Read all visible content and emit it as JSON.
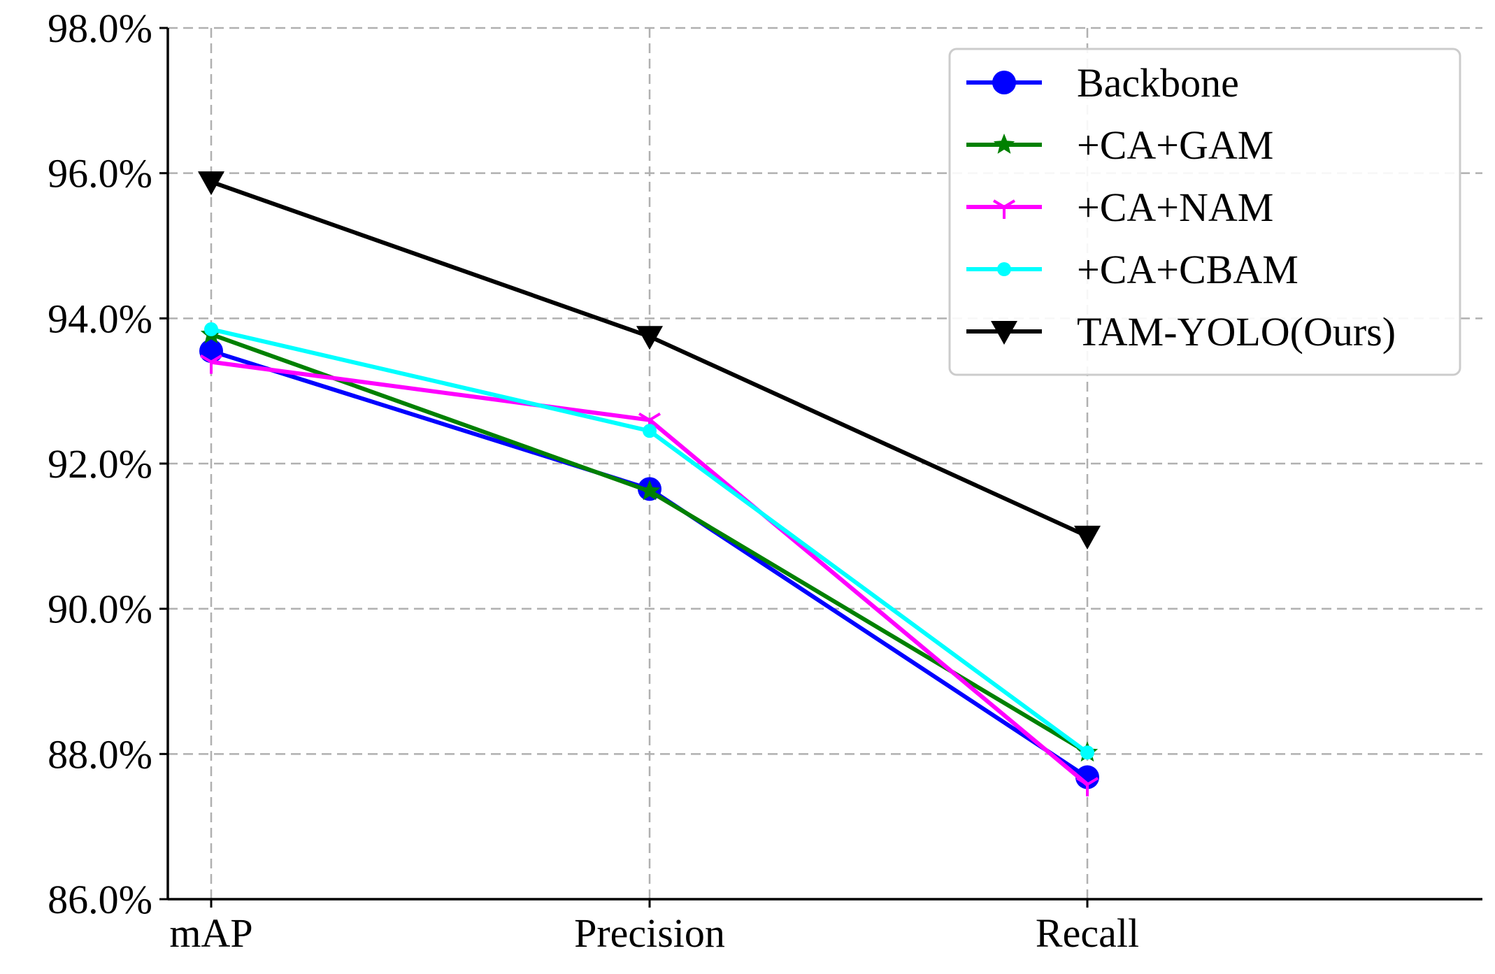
{
  "chart_data": {
    "type": "line",
    "title": "",
    "xlabel": "",
    "ylabel": "",
    "categories": [
      "mAP",
      "Precision",
      "Recall"
    ],
    "ylim": [
      86.0,
      98.0
    ],
    "yticks": [
      86.0,
      88.0,
      90.0,
      92.0,
      94.0,
      96.0,
      98.0
    ],
    "ytick_labels": [
      "86.0%",
      "88.0%",
      "90.0%",
      "92.0%",
      "94.0%",
      "96.0%",
      "98.0%"
    ],
    "grid": true,
    "legend_position": "top-right",
    "series": [
      {
        "name": "Backbone",
        "color": "#0000ff",
        "marker": "circle",
        "values": [
          93.55,
          91.65,
          87.68
        ]
      },
      {
        "name": "+CA+GAM",
        "color": "#008000",
        "marker": "star",
        "values": [
          93.78,
          91.62,
          88.02
        ]
      },
      {
        "name": "+CA+NAM",
        "color": "#ff00ff",
        "marker": "tri_down",
        "values": [
          93.4,
          92.6,
          87.58
        ]
      },
      {
        "name": "+CA+CBAM",
        "color": "#00ffff",
        "marker": "point",
        "values": [
          93.85,
          92.45,
          88.02
        ]
      },
      {
        "name": "TAM-YOLO(Ours)",
        "color": "#000000",
        "marker": "triangle_down",
        "values": [
          95.88,
          93.75,
          91.0
        ]
      }
    ]
  }
}
